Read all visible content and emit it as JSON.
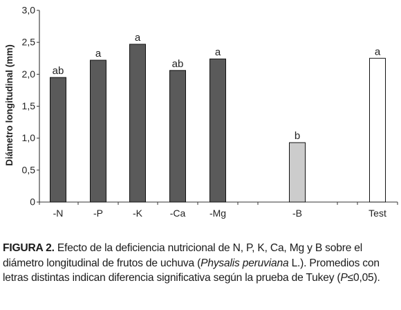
{
  "chart_data": {
    "type": "bar",
    "ylabel": "Diámetro longitudinal (mm)",
    "ylim": [
      0,
      3.0
    ],
    "yticks": [
      "0",
      "0,5",
      "1,0",
      "1,5",
      "2,0",
      "2,5",
      "3,0"
    ],
    "yticks_values": [
      0,
      0.5,
      1.0,
      1.5,
      2.0,
      2.5,
      3.0
    ],
    "categories": [
      "-N",
      "-P",
      "-K",
      "-Ca",
      "-Mg",
      "-B",
      "Test"
    ],
    "values": [
      1.95,
      2.22,
      2.47,
      2.06,
      2.24,
      0.93,
      2.25
    ],
    "letters": [
      "ab",
      "a",
      "a",
      "ab",
      "a",
      "b",
      "a"
    ],
    "colors": [
      "#5a5a5a",
      "#5a5a5a",
      "#5a5a5a",
      "#5a5a5a",
      "#5a5a5a",
      "#cccccc",
      "#ffffff"
    ],
    "grid": false,
    "legend": "none"
  },
  "caption": {
    "label": "FIGURA 2.",
    "part1": " Efecto de la deficiencia nutricional de N, P, K, Ca, Mg y B sobre el diámetro longitudinal de frutos de uchuva (",
    "species": "Physalis peruviana",
    "part2": " L.). Promedios con letras distintas indican diferencia significativa según la prueba de Tukey (",
    "p_symbol": "P",
    "part3": "≤0,05)."
  }
}
